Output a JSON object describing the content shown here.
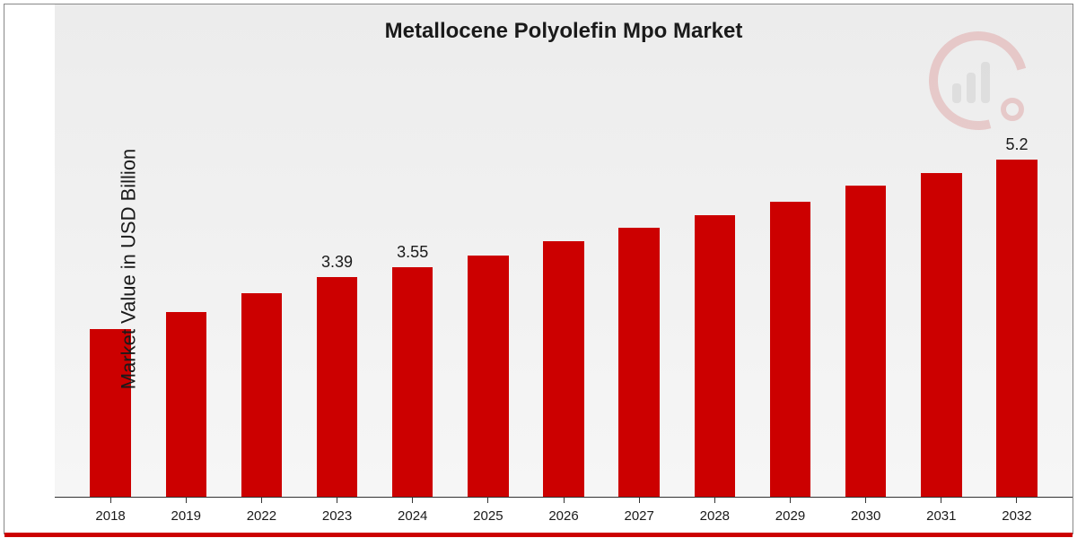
{
  "chart": {
    "type": "bar",
    "title": "Metallocene Polyolefin Mpo Market",
    "title_fontsize": 24,
    "ylabel": "Market Value in USD Billion",
    "ylabel_fontsize": 22,
    "background_gradient": [
      "#ececec",
      "#f6f6f6"
    ],
    "bar_color": "#cc0000",
    "text_color": "#1a1a1a",
    "border_color": "#888888",
    "baseline_color": "#333333",
    "footer_stripe_color": "#cc0000",
    "logo_color": "#c00000",
    "bar_width_ratio": 0.54,
    "ylim": [
      0,
      6
    ],
    "categories": [
      "2018",
      "2019",
      "2022",
      "2023",
      "2024",
      "2025",
      "2026",
      "2027",
      "2028",
      "2029",
      "2030",
      "2031",
      "2032"
    ],
    "values": [
      2.6,
      2.85,
      3.15,
      3.39,
      3.55,
      3.73,
      3.95,
      4.15,
      4.35,
      4.55,
      4.8,
      5.0,
      5.2
    ],
    "value_labels": {
      "3": "3.39",
      "4": "3.55",
      "12": "5.2"
    },
    "value_label_fontsize": 18,
    "xaxis_fontsize": 15
  }
}
